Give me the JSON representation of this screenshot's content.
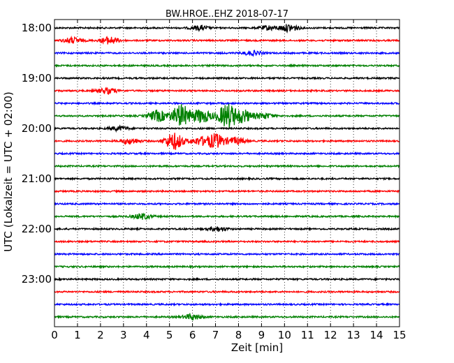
{
  "chart_data": {
    "type": "line",
    "title": "BW.HROE..EHZ 2018-07-17",
    "xlabel": "Zeit  [min]",
    "ylabel": "UTC (Lokalzeit = UTC + 02:00)",
    "xlim": [
      0,
      15
    ],
    "xticks": [
      0,
      1,
      2,
      3,
      4,
      5,
      6,
      7,
      8,
      9,
      10,
      11,
      12,
      13,
      14,
      15
    ],
    "x_tick_labels": [
      "0",
      "1",
      "2",
      "3",
      "4",
      "5",
      "6",
      "7",
      "8",
      "9",
      "10",
      "11",
      "12",
      "13",
      "14",
      "15"
    ],
    "y_tick_labels": [
      "18:00",
      "19:00",
      "20:00",
      "21:00",
      "22:00",
      "23:00"
    ],
    "grid": {
      "x": "dotted",
      "y": false
    },
    "line_colors": [
      "#000000",
      "#ff0000",
      "#0000ff",
      "#008000"
    ],
    "traces": [
      {
        "start": "18:00",
        "color": "#000000",
        "bursts": [
          {
            "t": 6.3,
            "amp": 3
          },
          {
            "t": 9.3,
            "amp": 3
          },
          {
            "t": 10.2,
            "amp": 5
          }
        ]
      },
      {
        "start": "18:15",
        "color": "#ff0000",
        "bursts": [
          {
            "t": 0.8,
            "amp": 4
          },
          {
            "t": 2.4,
            "amp": 5
          }
        ]
      },
      {
        "start": "18:30",
        "color": "#0000ff",
        "bursts": [
          {
            "t": 8.6,
            "amp": 3
          }
        ]
      },
      {
        "start": "18:45",
        "color": "#008000",
        "bursts": []
      },
      {
        "start": "19:00",
        "color": "#000000",
        "bursts": []
      },
      {
        "start": "19:15",
        "color": "#ff0000",
        "bursts": [
          {
            "t": 2.3,
            "amp": 4
          }
        ]
      },
      {
        "start": "19:30",
        "color": "#0000ff",
        "bursts": []
      },
      {
        "start": "19:45",
        "color": "#008000",
        "bursts": [
          {
            "t": 4.5,
            "amp": 8
          },
          {
            "t": 5.5,
            "amp": 16
          },
          {
            "t": 6.4,
            "amp": 10
          },
          {
            "t": 7.5,
            "amp": 17
          },
          {
            "t": 8.2,
            "amp": 9
          },
          {
            "t": 9.1,
            "amp": 4
          }
        ]
      },
      {
        "start": "20:00",
        "color": "#000000",
        "bursts": [
          {
            "t": 2.8,
            "amp": 3
          }
        ]
      },
      {
        "start": "20:15",
        "color": "#ff0000",
        "bursts": [
          {
            "t": 3.3,
            "amp": 4
          },
          {
            "t": 5.2,
            "amp": 12
          },
          {
            "t": 6.3,
            "amp": 5
          },
          {
            "t": 7.0,
            "amp": 10
          },
          {
            "t": 7.9,
            "amp": 5
          }
        ]
      },
      {
        "start": "20:30",
        "color": "#0000ff",
        "bursts": []
      },
      {
        "start": "20:45",
        "color": "#008000",
        "bursts": []
      },
      {
        "start": "21:00",
        "color": "#000000",
        "bursts": []
      },
      {
        "start": "21:15",
        "color": "#ff0000",
        "bursts": []
      },
      {
        "start": "21:30",
        "color": "#0000ff",
        "bursts": []
      },
      {
        "start": "21:45",
        "color": "#008000",
        "bursts": [
          {
            "t": 3.8,
            "amp": 4
          }
        ]
      },
      {
        "start": "22:00",
        "color": "#000000",
        "bursts": [
          {
            "t": 7.1,
            "amp": 3
          }
        ]
      },
      {
        "start": "22:15",
        "color": "#ff0000",
        "bursts": []
      },
      {
        "start": "22:30",
        "color": "#0000ff",
        "bursts": []
      },
      {
        "start": "22:45",
        "color": "#008000",
        "bursts": []
      },
      {
        "start": "23:00",
        "color": "#000000",
        "bursts": []
      },
      {
        "start": "23:15",
        "color": "#ff0000",
        "bursts": []
      },
      {
        "start": "23:30",
        "color": "#0000ff",
        "bursts": []
      },
      {
        "start": "23:45",
        "color": "#008000",
        "bursts": [
          {
            "t": 6.0,
            "amp": 4
          }
        ]
      }
    ]
  }
}
